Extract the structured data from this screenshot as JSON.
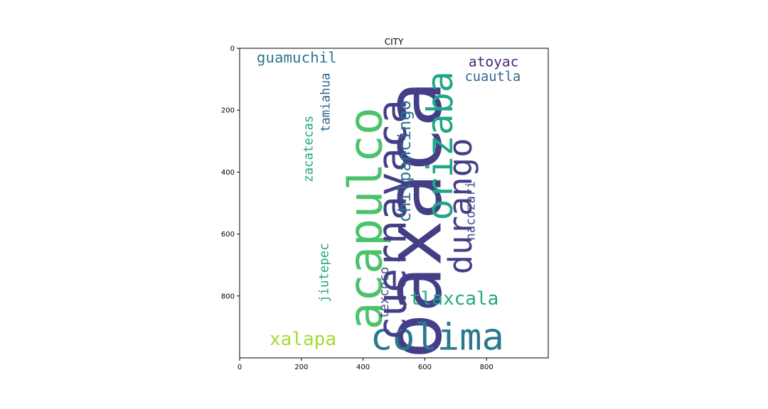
{
  "chart_data": {
    "type": "image",
    "title": "CITY",
    "xlim": [
      0,
      1000
    ],
    "ylim": [
      1000,
      0
    ],
    "x_ticks": [
      0,
      200,
      400,
      600,
      800
    ],
    "y_ticks": [
      0,
      200,
      400,
      600,
      800
    ],
    "words": [
      {
        "text": "oaxaca",
        "x": 565,
        "y": 555,
        "size": 250,
        "rotate": -90,
        "color": "#433e85"
      },
      {
        "text": "colima",
        "x": 640,
        "y": 935,
        "size": 120,
        "rotate": 0,
        "color": "#2a788e"
      },
      {
        "text": "acapulco",
        "x": 410,
        "y": 550,
        "size": 150,
        "rotate": -90,
        "color": "#4cc26c"
      },
      {
        "text": "cuernavaca",
        "x": 495,
        "y": 555,
        "size": 130,
        "rotate": -90,
        "color": "#433e85"
      },
      {
        "text": "orizaba",
        "x": 650,
        "y": 315,
        "size": 115,
        "rotate": -90,
        "color": "#21a685"
      },
      {
        "text": "durango",
        "x": 715,
        "y": 510,
        "size": 105,
        "rotate": -90,
        "color": "#433e85"
      },
      {
        "text": "chilpancingo",
        "x": 535,
        "y": 365,
        "size": 55,
        "rotate": -90,
        "color": "#2c718e"
      },
      {
        "text": "tlaxcala",
        "x": 695,
        "y": 810,
        "size": 60,
        "rotate": 0,
        "color": "#22a884"
      },
      {
        "text": "xalapa",
        "x": 205,
        "y": 940,
        "size": 60,
        "rotate": 0,
        "color": "#a5db36"
      },
      {
        "text": "guamuchil",
        "x": 185,
        "y": 30,
        "size": 48,
        "rotate": 0,
        "color": "#2a788e"
      },
      {
        "text": "atoyac",
        "x": 823,
        "y": 43,
        "size": 45,
        "rotate": 0,
        "color": "#482878"
      },
      {
        "text": "cuautla",
        "x": 820,
        "y": 93,
        "size": 43,
        "rotate": 0,
        "color": "#31688e"
      },
      {
        "text": "zacatecas",
        "x": 225,
        "y": 325,
        "size": 40,
        "rotate": -90,
        "color": "#22a884"
      },
      {
        "text": "tamiahua",
        "x": 280,
        "y": 175,
        "size": 40,
        "rotate": -90,
        "color": "#31688e"
      },
      {
        "text": "nacozari",
        "x": 750,
        "y": 525,
        "size": 40,
        "rotate": -90,
        "color": "#3e4989"
      },
      {
        "text": "jiutepec",
        "x": 275,
        "y": 725,
        "size": 40,
        "rotate": -90,
        "color": "#22a884"
      },
      {
        "text": "texcoco",
        "x": 470,
        "y": 790,
        "size": 40,
        "rotate": -90,
        "color": "#3e4989"
      }
    ]
  }
}
